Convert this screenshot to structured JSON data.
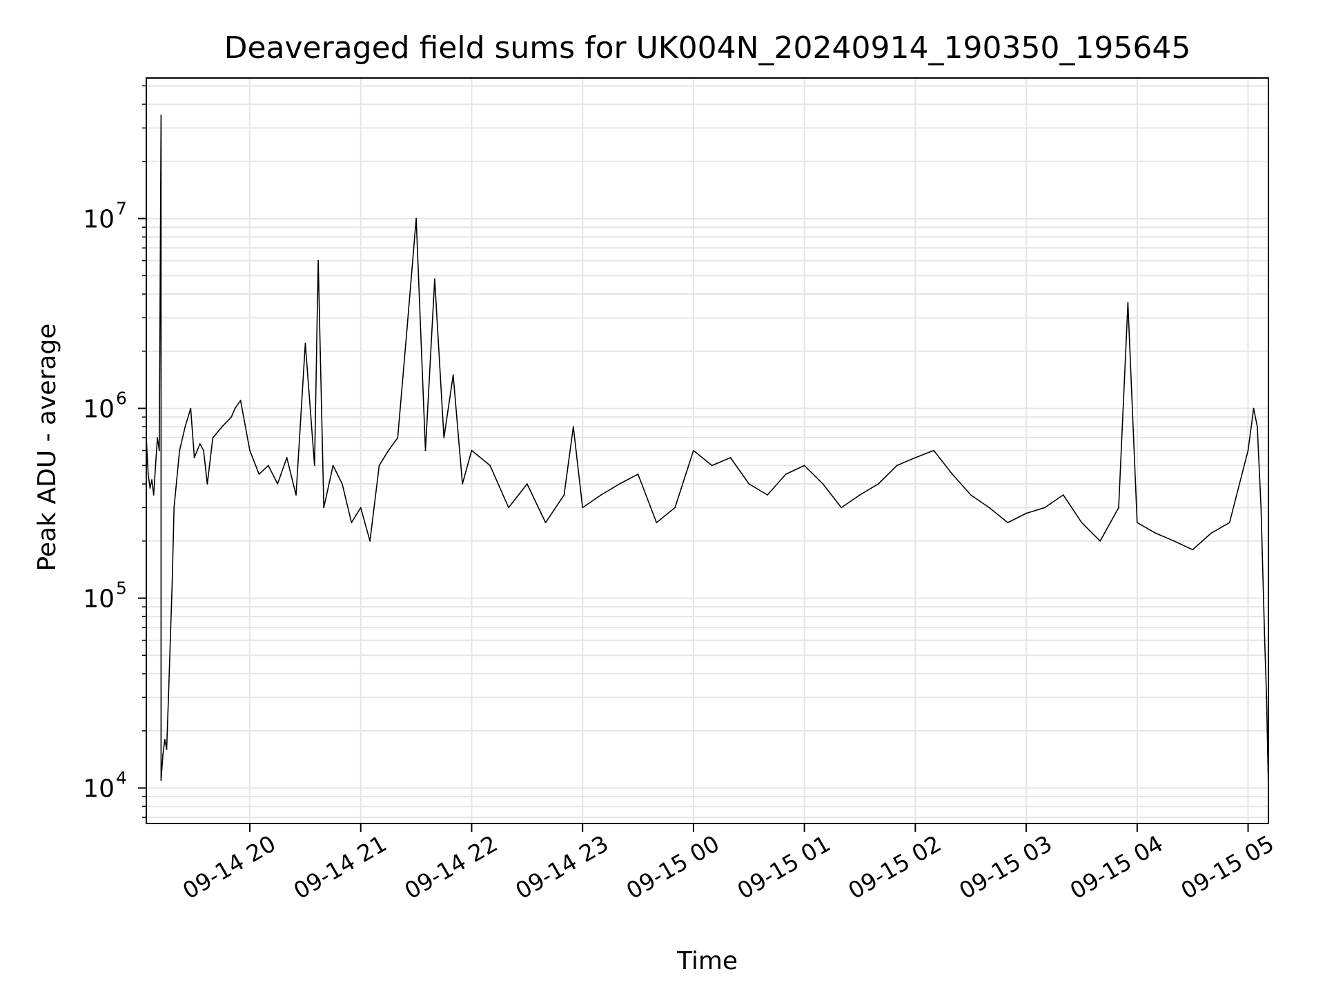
{
  "chart_data": {
    "type": "line",
    "title": "Deaveraged field sums for UK004N_20240914_190350_195645",
    "xlabel": "Time",
    "ylabel": "Peak ADU - average",
    "yscale": "log",
    "ylim": [
      6500,
      55000000
    ],
    "xlim": [
      "2024-09-14 19:04",
      "2024-09-15 05:11"
    ],
    "grid": true,
    "legend": "none",
    "line_color": "#000000",
    "grid_color": "#e5e5e5",
    "x_ticks": [
      {
        "value": "2024-09-14 20:00",
        "label": "09-14 20"
      },
      {
        "value": "2024-09-14 21:00",
        "label": "09-14 21"
      },
      {
        "value": "2024-09-14 22:00",
        "label": "09-14 22"
      },
      {
        "value": "2024-09-14 23:00",
        "label": "09-14 23"
      },
      {
        "value": "2024-09-15 00:00",
        "label": "09-15 00"
      },
      {
        "value": "2024-09-15 01:00",
        "label": "09-15 01"
      },
      {
        "value": "2024-09-15 02:00",
        "label": "09-15 02"
      },
      {
        "value": "2024-09-15 03:00",
        "label": "09-15 03"
      },
      {
        "value": "2024-09-15 04:00",
        "label": "09-15 04"
      },
      {
        "value": "2024-09-15 05:00",
        "label": "09-15 05"
      }
    ],
    "y_ticks": [
      {
        "value": 10000,
        "base": "10",
        "exp": "4"
      },
      {
        "value": 100000,
        "base": "10",
        "exp": "5"
      },
      {
        "value": 1000000,
        "base": "10",
        "exp": "6"
      },
      {
        "value": 10000000,
        "base": "10",
        "exp": "7"
      }
    ],
    "series": [
      {
        "x": [
          "2024-09-14 19:04",
          "2024-09-14 19:05",
          "2024-09-14 19:06",
          "2024-09-14 19:07",
          "2024-09-14 19:08",
          "2024-09-14 19:09",
          "2024-09-14 19:10",
          "2024-09-14 19:11",
          "2024-09-14 19:12",
          "2024-09-14 19:12",
          "2024-09-14 19:13",
          "2024-09-14 19:14",
          "2024-09-14 19:15",
          "2024-09-14 19:16",
          "2024-09-14 19:17",
          "2024-09-14 19:18",
          "2024-09-14 19:19",
          "2024-09-14 19:22",
          "2024-09-14 19:25",
          "2024-09-14 19:28",
          "2024-09-14 19:30",
          "2024-09-14 19:33",
          "2024-09-14 19:35",
          "2024-09-14 19:37",
          "2024-09-14 19:40",
          "2024-09-14 19:45",
          "2024-09-14 19:50",
          "2024-09-14 19:52",
          "2024-09-14 19:55",
          "2024-09-14 20:00",
          "2024-09-14 20:05",
          "2024-09-14 20:10",
          "2024-09-14 20:15",
          "2024-09-14 20:20",
          "2024-09-14 20:25",
          "2024-09-14 20:30",
          "2024-09-14 20:35",
          "2024-09-14 20:37",
          "2024-09-14 20:40",
          "2024-09-14 20:45",
          "2024-09-14 20:50",
          "2024-09-14 20:55",
          "2024-09-14 21:00",
          "2024-09-14 21:05",
          "2024-09-14 21:10",
          "2024-09-14 21:15",
          "2024-09-14 21:20",
          "2024-09-14 21:25",
          "2024-09-14 21:30",
          "2024-09-14 21:35",
          "2024-09-14 21:40",
          "2024-09-14 21:45",
          "2024-09-14 21:50",
          "2024-09-14 21:55",
          "2024-09-14 22:00",
          "2024-09-14 22:10",
          "2024-09-14 22:20",
          "2024-09-14 22:30",
          "2024-09-14 22:40",
          "2024-09-14 22:50",
          "2024-09-14 22:55",
          "2024-09-14 23:00",
          "2024-09-14 23:10",
          "2024-09-14 23:20",
          "2024-09-14 23:30",
          "2024-09-14 23:40",
          "2024-09-14 23:50",
          "2024-09-15 00:00",
          "2024-09-15 00:10",
          "2024-09-15 00:20",
          "2024-09-15 00:30",
          "2024-09-15 00:40",
          "2024-09-15 00:50",
          "2024-09-15 01:00",
          "2024-09-15 01:10",
          "2024-09-15 01:20",
          "2024-09-15 01:30",
          "2024-09-15 01:40",
          "2024-09-15 01:50",
          "2024-09-15 02:00",
          "2024-09-15 02:10",
          "2024-09-15 02:20",
          "2024-09-15 02:30",
          "2024-09-15 02:40",
          "2024-09-15 02:50",
          "2024-09-15 03:00",
          "2024-09-15 03:10",
          "2024-09-15 03:20",
          "2024-09-15 03:30",
          "2024-09-15 03:40",
          "2024-09-15 03:50",
          "2024-09-15 03:55",
          "2024-09-15 04:00",
          "2024-09-15 04:10",
          "2024-09-15 04:20",
          "2024-09-15 04:30",
          "2024-09-15 04:40",
          "2024-09-15 04:50",
          "2024-09-15 05:00",
          "2024-09-15 05:03",
          "2024-09-15 05:05",
          "2024-09-15 05:07",
          "2024-09-15 05:09",
          "2024-09-15 05:10",
          "2024-09-15 05:11"
        ],
        "values": [
          700000,
          450000,
          380000,
          420000,
          350000,
          500000,
          700000,
          600000,
          35000000,
          11000,
          15000,
          18000,
          16000,
          30000,
          60000,
          120000,
          300000,
          600000,
          800000,
          1000000,
          550000,
          650000,
          600000,
          400000,
          700000,
          800000,
          900000,
          1000000,
          1100000,
          600000,
          450000,
          500000,
          400000,
          550000,
          350000,
          2200000,
          500000,
          6000000,
          300000,
          500000,
          400000,
          250000,
          300000,
          200000,
          500000,
          600000,
          700000,
          2600000,
          10000000,
          600000,
          4800000,
          700000,
          1500000,
          400000,
          600000,
          500000,
          300000,
          400000,
          250000,
          350000,
          800000,
          300000,
          350000,
          400000,
          450000,
          250000,
          300000,
          600000,
          500000,
          550000,
          400000,
          350000,
          450000,
          500000,
          400000,
          300000,
          350000,
          400000,
          500000,
          550000,
          600000,
          450000,
          350000,
          300000,
          250000,
          280000,
          300000,
          350000,
          250000,
          200000,
          300000,
          3600000,
          250000,
          220000,
          200000,
          180000,
          220000,
          250000,
          600000,
          1000000,
          800000,
          300000,
          60000,
          30000,
          10000
        ]
      }
    ]
  }
}
